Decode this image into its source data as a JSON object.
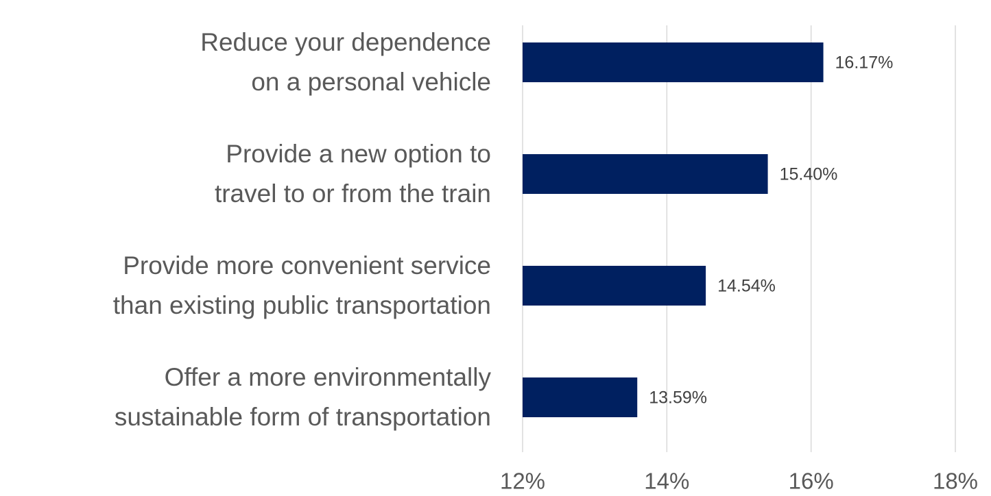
{
  "chart_data": {
    "type": "bar",
    "orientation": "horizontal",
    "categories": [
      "Reduce your dependence on a personal vehicle",
      "Provide a new option to travel to or from the train",
      "Provide more convenient service than existing public transportation",
      "Offer a more environmentally sustainable form of transportation"
    ],
    "values": [
      16.17,
      15.4,
      14.54,
      13.59
    ],
    "value_labels": [
      "16.17%",
      "15.40%",
      "14.54%",
      "13.59%"
    ],
    "color": "#002060",
    "xlim": [
      12,
      18
    ],
    "xticks": [
      {
        "value": 12,
        "label": "12%"
      },
      {
        "value": 14,
        "label": "14%"
      },
      {
        "value": 16,
        "label": "16%"
      },
      {
        "value": 18,
        "label": "18%"
      }
    ],
    "grid": true
  }
}
